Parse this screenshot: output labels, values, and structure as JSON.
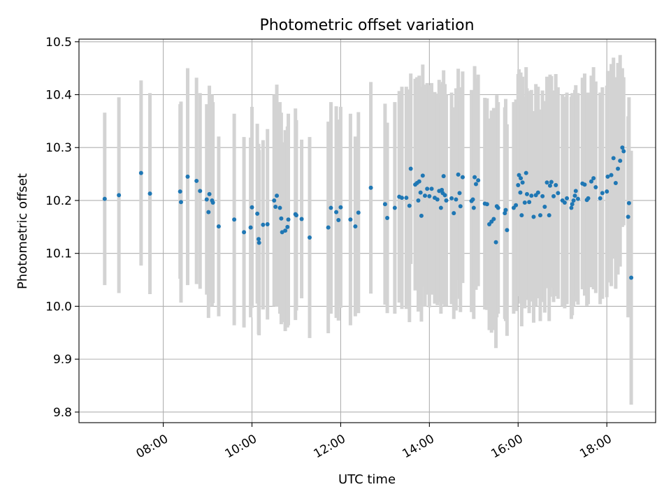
{
  "chart_data": {
    "type": "scatter",
    "title": "Photometric offset variation",
    "xlabel": "UTC time",
    "ylabel": "Photometric offset",
    "x_unit": "hours UTC",
    "xlim": [
      6.1,
      19.1
    ],
    "ylim": [
      9.78,
      10.505
    ],
    "xticks": [
      {
        "value": 8,
        "label": "08:00"
      },
      {
        "value": 10,
        "label": "10:00"
      },
      {
        "value": 12,
        "label": "12:00"
      },
      {
        "value": 14,
        "label": "14:00"
      },
      {
        "value": 16,
        "label": "16:00"
      },
      {
        "value": 18,
        "label": "18:00"
      }
    ],
    "yticks": [
      {
        "value": 9.8,
        "label": "9.8"
      },
      {
        "value": 9.9,
        "label": "9.9"
      },
      {
        "value": 10.0,
        "label": "10.0"
      },
      {
        "value": 10.1,
        "label": "10.1"
      },
      {
        "value": 10.2,
        "label": "10.2"
      },
      {
        "value": 10.3,
        "label": "10.3"
      },
      {
        "value": 10.4,
        "label": "10.4"
      },
      {
        "value": 10.5,
        "label": "10.5"
      }
    ],
    "grid": true,
    "point_color": "#1f77b4",
    "errorbar_color": "#d3d3d3",
    "points": [
      [
        6.68,
        10.203,
        0.163
      ],
      [
        7.0,
        10.21,
        0.185
      ],
      [
        7.5,
        10.252,
        0.175
      ],
      [
        7.7,
        10.213,
        0.19
      ],
      [
        8.38,
        10.217,
        0.165
      ],
      [
        8.4,
        10.197,
        0.19
      ],
      [
        8.55,
        10.245,
        0.205
      ],
      [
        8.75,
        10.237,
        0.195
      ],
      [
        8.83,
        10.218,
        0.185
      ],
      [
        8.98,
        10.202,
        0.18
      ],
      [
        9.02,
        10.178,
        0.2
      ],
      [
        9.04,
        10.212,
        0.205
      ],
      [
        9.1,
        10.2,
        0.2
      ],
      [
        9.12,
        10.196,
        0.19
      ],
      [
        9.25,
        10.151,
        0.17
      ],
      [
        9.6,
        10.164,
        0.2
      ],
      [
        9.82,
        10.14,
        0.18
      ],
      [
        9.97,
        10.149,
        0.17
      ],
      [
        10.0,
        10.187,
        0.19
      ],
      [
        10.12,
        10.175,
        0.17
      ],
      [
        10.15,
        10.127,
        0.18
      ],
      [
        10.16,
        10.12,
        0.175
      ],
      [
        10.25,
        10.154,
        0.16
      ],
      [
        10.35,
        10.155,
        0.18
      ],
      [
        10.5,
        10.2,
        0.2
      ],
      [
        10.53,
        10.188,
        0.18
      ],
      [
        10.56,
        10.209,
        0.21
      ],
      [
        10.63,
        10.186,
        0.2
      ],
      [
        10.66,
        10.166,
        0.2
      ],
      [
        10.68,
        10.14,
        0.17
      ],
      [
        10.75,
        10.143,
        0.19
      ],
      [
        10.8,
        10.15,
        0.19
      ],
      [
        10.82,
        10.164,
        0.2
      ],
      [
        10.98,
        10.174,
        0.2
      ],
      [
        11.0,
        10.172,
        0.18
      ],
      [
        11.12,
        10.165,
        0.15
      ],
      [
        11.3,
        10.13,
        0.19
      ],
      [
        11.72,
        10.149,
        0.2
      ],
      [
        11.78,
        10.186,
        0.2
      ],
      [
        11.9,
        10.178,
        0.2
      ],
      [
        11.95,
        10.163,
        0.19
      ],
      [
        12.0,
        10.187,
        0.19
      ],
      [
        12.22,
        10.164,
        0.2
      ],
      [
        12.33,
        10.151,
        0.17
      ],
      [
        12.4,
        10.177,
        0.19
      ],
      [
        12.68,
        10.224,
        0.2
      ],
      [
        13.0,
        10.193,
        0.19
      ],
      [
        13.05,
        10.167,
        0.18
      ],
      [
        13.22,
        10.186,
        0.2
      ],
      [
        13.32,
        10.207,
        0.2
      ],
      [
        13.38,
        10.205,
        0.21
      ],
      [
        13.48,
        10.205,
        0.21
      ],
      [
        13.55,
        10.19,
        0.22
      ],
      [
        13.58,
        10.26,
        0.18
      ],
      [
        13.68,
        10.23,
        0.2
      ],
      [
        13.72,
        10.233,
        0.2
      ],
      [
        13.75,
        10.2,
        0.21
      ],
      [
        13.77,
        10.236,
        0.2
      ],
      [
        13.8,
        10.215,
        0.2
      ],
      [
        13.82,
        10.171,
        0.2
      ],
      [
        13.85,
        10.247,
        0.21
      ],
      [
        13.9,
        10.209,
        0.21
      ],
      [
        13.95,
        10.222,
        0.2
      ],
      [
        14.0,
        10.208,
        0.21
      ],
      [
        14.05,
        10.222,
        0.2
      ],
      [
        14.12,
        10.205,
        0.2
      ],
      [
        14.18,
        10.202,
        0.2
      ],
      [
        14.22,
        10.218,
        0.21
      ],
      [
        14.26,
        10.186,
        0.2
      ],
      [
        14.28,
        10.22,
        0.2
      ],
      [
        14.3,
        10.214,
        0.21
      ],
      [
        14.32,
        10.246,
        0.2
      ],
      [
        14.35,
        10.21,
        0.21
      ],
      [
        14.38,
        10.2,
        0.2
      ],
      [
        14.5,
        10.204,
        0.2
      ],
      [
        14.55,
        10.176,
        0.2
      ],
      [
        14.6,
        10.202,
        0.21
      ],
      [
        14.65,
        10.249,
        0.2
      ],
      [
        14.68,
        10.214,
        0.2
      ],
      [
        14.7,
        10.189,
        0.2
      ],
      [
        14.75,
        10.244,
        0.2
      ],
      [
        14.95,
        10.199,
        0.21
      ],
      [
        14.98,
        10.202,
        0.2
      ],
      [
        15.0,
        10.186,
        0.21
      ],
      [
        15.02,
        10.244,
        0.21
      ],
      [
        15.05,
        10.231,
        0.2
      ],
      [
        15.1,
        10.238,
        0.2
      ],
      [
        15.25,
        10.194,
        0.2
      ],
      [
        15.3,
        10.193,
        0.2
      ],
      [
        15.35,
        10.155,
        0.2
      ],
      [
        15.4,
        10.16,
        0.21
      ],
      [
        15.45,
        10.165,
        0.21
      ],
      [
        15.5,
        10.121,
        0.2
      ],
      [
        15.52,
        10.189,
        0.21
      ],
      [
        15.55,
        10.186,
        0.2
      ],
      [
        15.7,
        10.176,
        0.2
      ],
      [
        15.72,
        10.182,
        0.21
      ],
      [
        15.75,
        10.144,
        0.2
      ],
      [
        15.9,
        10.186,
        0.2
      ],
      [
        15.95,
        10.191,
        0.2
      ],
      [
        16.0,
        10.229,
        0.21
      ],
      [
        16.02,
        10.248,
        0.2
      ],
      [
        16.05,
        10.215,
        0.21
      ],
      [
        16.06,
        10.242,
        0.2
      ],
      [
        16.08,
        10.172,
        0.21
      ],
      [
        16.1,
        10.234,
        0.2
      ],
      [
        16.15,
        10.196,
        0.2
      ],
      [
        16.18,
        10.252,
        0.2
      ],
      [
        16.2,
        10.212,
        0.2
      ],
      [
        16.25,
        10.197,
        0.21
      ],
      [
        16.3,
        10.209,
        0.2
      ],
      [
        16.35,
        10.169,
        0.2
      ],
      [
        16.4,
        10.21,
        0.21
      ],
      [
        16.45,
        10.215,
        0.2
      ],
      [
        16.5,
        10.172,
        0.2
      ],
      [
        16.55,
        10.208,
        0.2
      ],
      [
        16.6,
        10.188,
        0.2
      ],
      [
        16.65,
        10.234,
        0.2
      ],
      [
        16.7,
        10.172,
        0.2
      ],
      [
        16.72,
        10.228,
        0.21
      ],
      [
        16.75,
        10.235,
        0.2
      ],
      [
        16.8,
        10.208,
        0.2
      ],
      [
        16.85,
        10.229,
        0.21
      ],
      [
        16.9,
        10.214,
        0.2
      ],
      [
        17.0,
        10.2,
        0.2
      ],
      [
        17.05,
        10.196,
        0.2
      ],
      [
        17.1,
        10.204,
        0.2
      ],
      [
        17.2,
        10.186,
        0.21
      ],
      [
        17.22,
        10.193,
        0.21
      ],
      [
        17.25,
        10.2,
        0.2
      ],
      [
        17.28,
        10.209,
        0.2
      ],
      [
        17.3,
        10.218,
        0.2
      ],
      [
        17.35,
        10.203,
        0.2
      ],
      [
        17.45,
        10.232,
        0.2
      ],
      [
        17.5,
        10.23,
        0.21
      ],
      [
        17.55,
        10.201,
        0.2
      ],
      [
        17.58,
        10.204,
        0.2
      ],
      [
        17.65,
        10.236,
        0.2
      ],
      [
        17.7,
        10.242,
        0.21
      ],
      [
        17.75,
        10.225,
        0.2
      ],
      [
        17.85,
        10.204,
        0.2
      ],
      [
        17.9,
        10.214,
        0.2
      ],
      [
        18.0,
        10.217,
        0.2
      ],
      [
        18.02,
        10.245,
        0.2
      ],
      [
        18.1,
        10.248,
        0.21
      ],
      [
        18.15,
        10.28,
        0.19
      ],
      [
        18.2,
        10.233,
        0.2
      ],
      [
        18.25,
        10.26,
        0.2
      ],
      [
        18.3,
        10.275,
        0.2
      ],
      [
        18.35,
        10.3,
        0.15
      ],
      [
        18.38,
        10.293,
        0.14
      ],
      [
        18.48,
        10.169,
        0.19
      ],
      [
        18.5,
        10.195,
        0.2
      ],
      [
        18.55,
        10.054,
        0.24
      ]
    ]
  }
}
